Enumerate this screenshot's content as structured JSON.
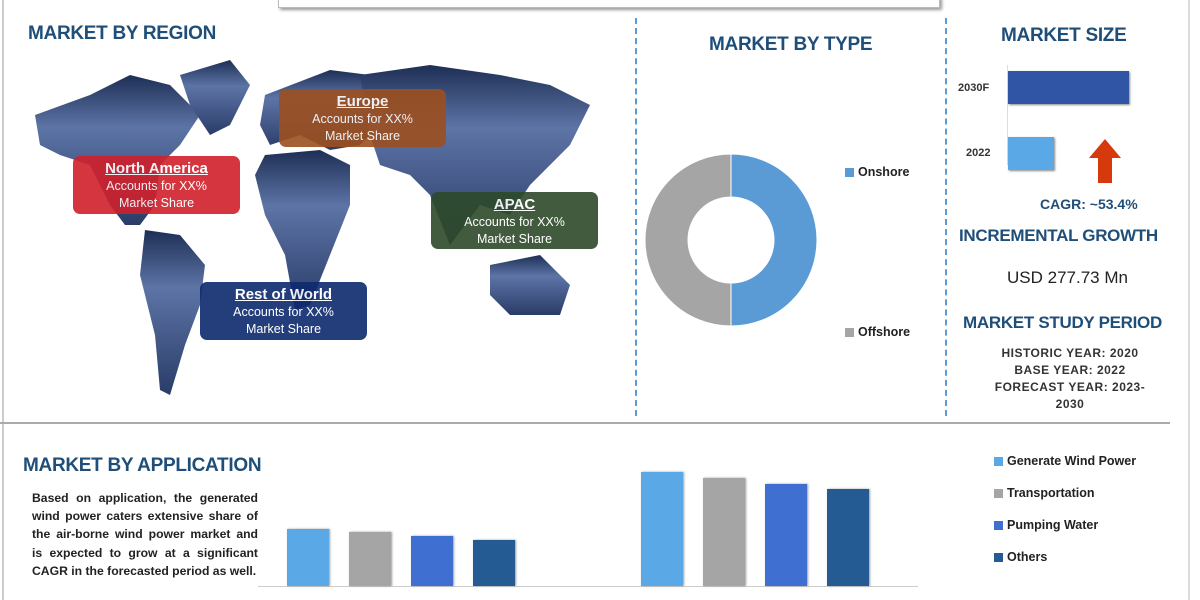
{
  "region": {
    "title": "MARKET BY REGION",
    "boxes": [
      {
        "name": "North America",
        "line1": "Accounts for XX%",
        "line2": "Market Share",
        "color": "#d0202a"
      },
      {
        "name": "Europe",
        "line1": "Accounts for XX%",
        "line2": "Market Share",
        "color": "#9c4f1f"
      },
      {
        "name": "APAC",
        "line1": "Accounts for XX%",
        "line2": "Market Share",
        "color": "#2e4a2a"
      },
      {
        "name": "Rest of World",
        "line1": "Accounts for XX%",
        "line2": "Market Share",
        "color": "#0d2a6e"
      }
    ]
  },
  "chart_data": [
    {
      "type": "pie",
      "title": "MARKET BY TYPE",
      "donut": true,
      "categories": [
        "Onshore",
        "Offshore"
      ],
      "values": [
        50,
        50
      ],
      "colors": [
        "#5b9bd5",
        "#a5a5a5"
      ],
      "legend": "right"
    },
    {
      "type": "bar",
      "title": "MARKET SIZE",
      "orientation": "horizontal",
      "categories": [
        "2030F",
        "2022"
      ],
      "values": [
        121,
        46
      ],
      "colors": [
        "#2f55a4",
        "#5aa9e6"
      ]
    },
    {
      "type": "bar",
      "title": "MARKET BY APPLICATION",
      "groups": 2,
      "series": [
        {
          "name": "Generate Wind Power",
          "values": [
            57,
            114
          ],
          "color": "#5aa9e6"
        },
        {
          "name": "Transportation",
          "values": [
            54,
            108
          ],
          "color": "#a5a5a5"
        },
        {
          "name": "Pumping Water",
          "values": [
            50,
            102
          ],
          "color": "#3f6fd0"
        },
        {
          "name": "Others",
          "values": [
            46,
            97
          ],
          "color": "#245b92"
        }
      ],
      "legend": "right"
    }
  ],
  "size": {
    "cagr": "CAGR:  ~53.4%",
    "inc_title": "INCREMENTAL GROWTH",
    "inc_value": "USD 277.73 Mn",
    "period_title": "MARKET STUDY PERIOD",
    "historic": "HISTORIC YEAR: 2020",
    "base": "BASE YEAR: 2022",
    "forecast": "FORECAST YEAR: 2023-",
    "forecast2": "2030",
    "arrow_color": "#d63a0c"
  },
  "application": {
    "text": "Based on application, the generated wind power caters extensive share of the air-borne wind power market and is expected to grow at a significant CAGR in the forecasted period as well."
  }
}
